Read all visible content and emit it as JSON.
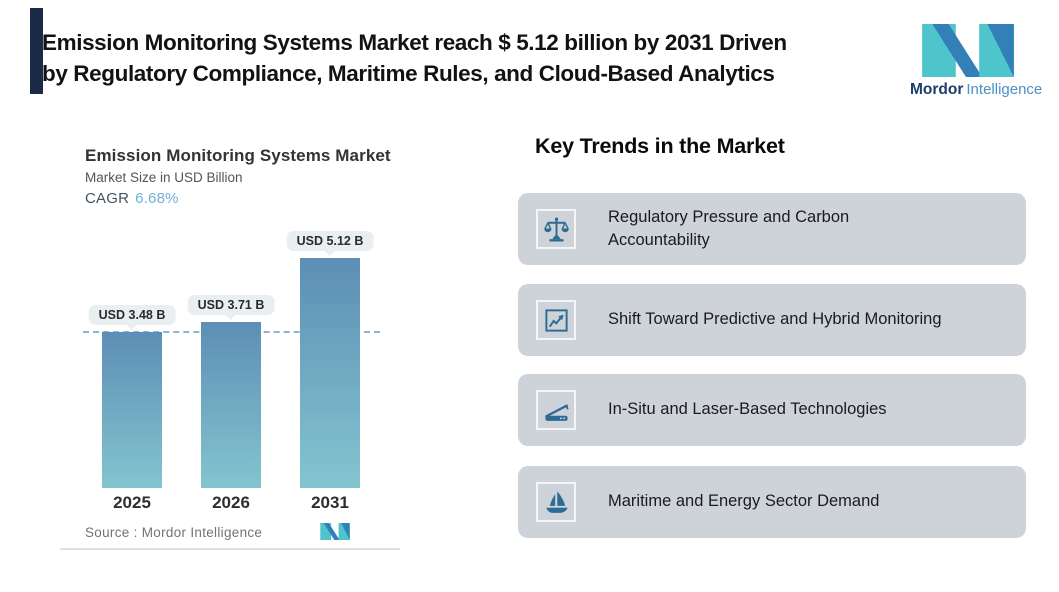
{
  "header": {
    "title_line1": "Emission Monitoring Systems Market reach $ 5.12 billion by 2031 Driven",
    "title_line2": "by Regulatory Compliance, Maritime Rules, and Cloud-Based Analytics",
    "accent_color": "#1b2b47"
  },
  "logo": {
    "brand": "Mordor",
    "brand_suffix": "Intelligence",
    "teal": "#4ec5ca",
    "blue": "#3380b8",
    "brand_color": "#1d3c6c",
    "suffix_color": "#4a90c4"
  },
  "chart_data": {
    "type": "bar",
    "title": "Emission Monitoring Systems Market",
    "subtitle": "Market Size in USD Billion",
    "cagr_label": "CAGR",
    "cagr_value": "6.68%",
    "categories": [
      "2025",
      "2026",
      "2031"
    ],
    "values": [
      3.48,
      3.71,
      5.12
    ],
    "value_labels": [
      "USD 3.48 B",
      "USD 3.71 B",
      "USD 5.12 B"
    ],
    "unit": "USD Billion",
    "ylim": [
      0,
      5.5
    ],
    "grid": "off",
    "legend": "none",
    "reference_line_value": 3.48,
    "bar_color_top": "#5d8eb5",
    "bar_color_bottom": "#83c5cf",
    "dashed_line_color": "#8fb4cb",
    "cagr_value_color": "#6fb0d9",
    "source": "Source :  Mordor Intelligence"
  },
  "trends": {
    "heading": "Key Trends in the Market",
    "card_bg": "#cdd3d9",
    "icon_color": "#2d6b94",
    "items": [
      {
        "icon": "balance-scale-icon",
        "label": "Regulatory Pressure and Carbon Accountability"
      },
      {
        "icon": "trend-line-chart-icon",
        "label": "Shift Toward Predictive and Hybrid Monitoring"
      },
      {
        "icon": "laser-scanner-icon",
        "label": "In-Situ and Laser-Based Technologies"
      },
      {
        "icon": "sailboat-icon",
        "label": "Maritime and Energy Sector Demand"
      }
    ]
  }
}
